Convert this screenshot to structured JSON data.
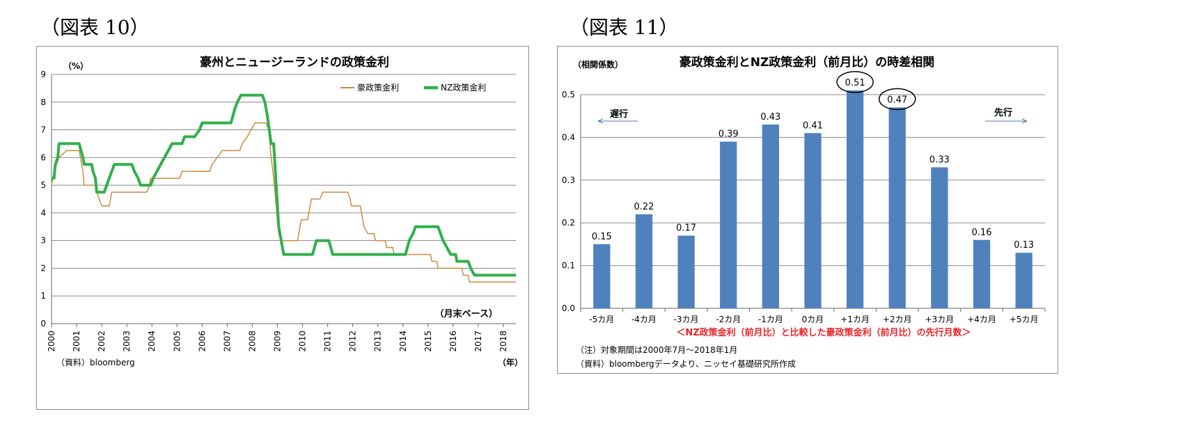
{
  "figures": [
    {
      "label": "（図表 10）"
    },
    {
      "label": "（図表 11）"
    }
  ],
  "chart_data": [
    {
      "type": "line",
      "title": "豪州とニュージーランドの政策金利",
      "ylabel": "（%）",
      "xlabel": "（年）",
      "x_note": "（月末ベース）",
      "source": "（資料）bloomberg",
      "ylim": [
        0,
        9
      ],
      "yticks": [
        "0",
        "1",
        "2",
        "3",
        "4",
        "5",
        "6",
        "7",
        "8",
        "9"
      ],
      "xticks": [
        "2000",
        "2001",
        "2002",
        "2003",
        "2004",
        "2005",
        "2006",
        "2007",
        "2008",
        "2009",
        "2010",
        "2011",
        "2012",
        "2013",
        "2014",
        "2015",
        "2016",
        "2017",
        "2018"
      ],
      "xlim": [
        2000.0,
        2018.5
      ],
      "grid": true,
      "legend": "top-right",
      "series": [
        {
          "name": "豪政策金利",
          "color": "#d0883d",
          "points": [
            [
              2000.0,
              5.0
            ],
            [
              2000.1,
              5.5
            ],
            [
              2000.2,
              5.75
            ],
            [
              2000.3,
              6.0
            ],
            [
              2000.6,
              6.25
            ],
            [
              2001.1,
              6.25
            ],
            [
              2001.2,
              5.75
            ],
            [
              2001.25,
              5.5
            ],
            [
              2001.3,
              5.0
            ],
            [
              2001.75,
              5.0
            ],
            [
              2001.8,
              4.75
            ],
            [
              2001.9,
              4.5
            ],
            [
              2002.0,
              4.25
            ],
            [
              2002.3,
              4.25
            ],
            [
              2002.35,
              4.5
            ],
            [
              2002.4,
              4.75
            ],
            [
              2003.8,
              4.75
            ],
            [
              2003.9,
              5.0
            ],
            [
              2003.95,
              5.25
            ],
            [
              2005.1,
              5.25
            ],
            [
              2005.2,
              5.5
            ],
            [
              2006.3,
              5.5
            ],
            [
              2006.4,
              5.75
            ],
            [
              2006.6,
              6.0
            ],
            [
              2006.8,
              6.25
            ],
            [
              2007.5,
              6.25
            ],
            [
              2007.6,
              6.5
            ],
            [
              2007.8,
              6.75
            ],
            [
              2007.95,
              7.0
            ],
            [
              2008.1,
              7.25
            ],
            [
              2008.55,
              7.25
            ],
            [
              2008.65,
              7.0
            ],
            [
              2008.75,
              6.0
            ],
            [
              2008.85,
              5.25
            ],
            [
              2008.95,
              4.25
            ],
            [
              2009.05,
              3.25
            ],
            [
              2009.15,
              3.0
            ],
            [
              2009.8,
              3.0
            ],
            [
              2009.85,
              3.25
            ],
            [
              2009.9,
              3.5
            ],
            [
              2009.95,
              3.75
            ],
            [
              2010.2,
              3.75
            ],
            [
              2010.3,
              4.25
            ],
            [
              2010.35,
              4.5
            ],
            [
              2010.7,
              4.5
            ],
            [
              2010.8,
              4.75
            ],
            [
              2011.8,
              4.75
            ],
            [
              2011.9,
              4.5
            ],
            [
              2011.95,
              4.25
            ],
            [
              2012.3,
              4.25
            ],
            [
              2012.4,
              3.75
            ],
            [
              2012.45,
              3.5
            ],
            [
              2012.6,
              3.25
            ],
            [
              2012.85,
              3.25
            ],
            [
              2012.9,
              3.0
            ],
            [
              2013.3,
              3.0
            ],
            [
              2013.35,
              2.75
            ],
            [
              2013.6,
              2.75
            ],
            [
              2013.65,
              2.5
            ],
            [
              2015.1,
              2.5
            ],
            [
              2015.15,
              2.25
            ],
            [
              2015.35,
              2.25
            ],
            [
              2015.4,
              2.0
            ],
            [
              2016.35,
              2.0
            ],
            [
              2016.4,
              1.75
            ],
            [
              2016.6,
              1.75
            ],
            [
              2016.65,
              1.5
            ],
            [
              2018.5,
              1.5
            ]
          ]
        },
        {
          "name": "NZ政策金利",
          "color": "#2fb04a",
          "points": [
            [
              2000.0,
              5.25
            ],
            [
              2000.1,
              5.25
            ],
            [
              2000.15,
              5.75
            ],
            [
              2000.25,
              6.0
            ],
            [
              2000.3,
              6.5
            ],
            [
              2001.1,
              6.5
            ],
            [
              2001.25,
              6.0
            ],
            [
              2001.3,
              5.75
            ],
            [
              2001.6,
              5.75
            ],
            [
              2001.65,
              5.5
            ],
            [
              2001.75,
              5.25
            ],
            [
              2001.8,
              4.75
            ],
            [
              2002.1,
              4.75
            ],
            [
              2002.2,
              5.0
            ],
            [
              2002.3,
              5.25
            ],
            [
              2002.4,
              5.5
            ],
            [
              2002.5,
              5.75
            ],
            [
              2003.2,
              5.75
            ],
            [
              2003.3,
              5.5
            ],
            [
              2003.45,
              5.25
            ],
            [
              2003.55,
              5.0
            ],
            [
              2003.95,
              5.0
            ],
            [
              2004.05,
              5.25
            ],
            [
              2004.2,
              5.5
            ],
            [
              2004.35,
              5.75
            ],
            [
              2004.5,
              6.0
            ],
            [
              2004.65,
              6.25
            ],
            [
              2004.8,
              6.5
            ],
            [
              2005.2,
              6.5
            ],
            [
              2005.3,
              6.75
            ],
            [
              2005.7,
              6.75
            ],
            [
              2005.9,
              7.0
            ],
            [
              2006.0,
              7.25
            ],
            [
              2007.15,
              7.25
            ],
            [
              2007.3,
              7.75
            ],
            [
              2007.4,
              8.0
            ],
            [
              2007.55,
              8.25
            ],
            [
              2008.4,
              8.25
            ],
            [
              2008.5,
              8.0
            ],
            [
              2008.6,
              7.5
            ],
            [
              2008.75,
              6.5
            ],
            [
              2008.85,
              6.5
            ],
            [
              2008.95,
              5.0
            ],
            [
              2009.05,
              3.5
            ],
            [
              2009.15,
              3.0
            ],
            [
              2009.25,
              2.5
            ],
            [
              2010.4,
              2.5
            ],
            [
              2010.55,
              3.0
            ],
            [
              2011.05,
              3.0
            ],
            [
              2011.2,
              2.5
            ],
            [
              2014.1,
              2.5
            ],
            [
              2014.25,
              3.0
            ],
            [
              2014.4,
              3.25
            ],
            [
              2014.5,
              3.5
            ],
            [
              2015.4,
              3.5
            ],
            [
              2015.5,
              3.25
            ],
            [
              2015.6,
              3.0
            ],
            [
              2015.75,
              2.75
            ],
            [
              2015.9,
              2.5
            ],
            [
              2016.1,
              2.5
            ],
            [
              2016.15,
              2.25
            ],
            [
              2016.6,
              2.25
            ],
            [
              2016.7,
              2.0
            ],
            [
              2016.85,
              1.75
            ],
            [
              2018.5,
              1.75
            ]
          ]
        }
      ]
    },
    {
      "type": "bar",
      "title": "豪政策金利とNZ政策金利（前月比）の時差相関",
      "ylabel": "（相関係数）",
      "xlabel": "＜NZ政策金利（前月比）と比較した豪政策金利（前月比）の先行月数＞",
      "ylim": [
        0,
        0.5
      ],
      "yticks": [
        "0.0",
        "0.1",
        "0.2",
        "0.3",
        "0.4",
        "0.5"
      ],
      "categories": [
        "-5カ月",
        "-4カ月",
        "-3カ月",
        "-2カ月",
        "-1カ月",
        "0カ月",
        "+1カ月",
        "+2カ月",
        "+3カ月",
        "+4カ月",
        "+5カ月"
      ],
      "values": [
        0.15,
        0.22,
        0.17,
        0.39,
        0.43,
        0.41,
        0.51,
        0.47,
        0.33,
        0.16,
        0.13
      ],
      "bar_color": "#4f81bd",
      "circled": [
        "0.51",
        "0.47"
      ],
      "lag_label": "遅行",
      "lead_label": "先行",
      "notes": [
        "（注）対象期間は2000年7月～2018年1月",
        "（資料）bloombergデータより、ニッセイ基礎研究所作成"
      ]
    }
  ]
}
